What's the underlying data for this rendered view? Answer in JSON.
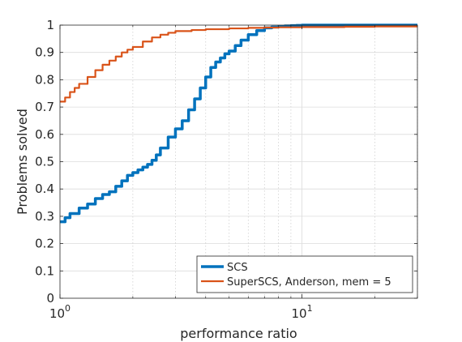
{
  "chart_data": {
    "type": "line",
    "title": "",
    "xlabel": "performance ratio",
    "ylabel": "Problems solved",
    "xscale": "log",
    "xlim": [
      1,
      30
    ],
    "ylim": [
      0,
      1
    ],
    "grid": true,
    "legend_position": "bottom-right",
    "y_ticks": [
      0,
      0.1,
      0.2,
      0.3,
      0.4,
      0.5,
      0.6,
      0.7,
      0.8,
      0.9,
      1
    ],
    "y_tick_labels": [
      "0",
      "0.1",
      "0.2",
      "0.3",
      "0.4",
      "0.5",
      "0.6",
      "0.7",
      "0.8",
      "0.9",
      "1"
    ],
    "x_major_ticks": [
      {
        "value": 1,
        "base": "10",
        "exp": "0"
      },
      {
        "value": 10,
        "base": "10",
        "exp": "1"
      }
    ],
    "x_minor_ticks": [
      2,
      3,
      4,
      5,
      6,
      7,
      8,
      9,
      20,
      30
    ],
    "series": [
      {
        "name": "SCS",
        "color": "#0072BD",
        "x": [
          1.0,
          1.05,
          1.1,
          1.2,
          1.3,
          1.4,
          1.5,
          1.6,
          1.7,
          1.8,
          1.9,
          2.0,
          2.1,
          2.2,
          2.3,
          2.4,
          2.5,
          2.6,
          2.8,
          3.0,
          3.2,
          3.4,
          3.6,
          3.8,
          4.0,
          4.2,
          4.4,
          4.6,
          4.8,
          5.0,
          5.3,
          5.6,
          6.0,
          6.5,
          7.0,
          7.5,
          8.0,
          8.5,
          9.0,
          9.5,
          10.0,
          12.0,
          15.0,
          20.0,
          30.0
        ],
        "y": [
          0.28,
          0.295,
          0.31,
          0.33,
          0.345,
          0.365,
          0.38,
          0.39,
          0.41,
          0.43,
          0.45,
          0.46,
          0.47,
          0.48,
          0.49,
          0.505,
          0.525,
          0.55,
          0.59,
          0.62,
          0.65,
          0.69,
          0.73,
          0.77,
          0.81,
          0.845,
          0.865,
          0.88,
          0.895,
          0.905,
          0.925,
          0.945,
          0.965,
          0.98,
          0.99,
          0.993,
          0.995,
          0.997,
          0.998,
          0.999,
          1.0,
          1.0,
          1.0,
          1.0,
          1.0
        ]
      },
      {
        "name": "SuperSCS, Anderson, mem = 5",
        "color": "#D95319",
        "x": [
          1.0,
          1.05,
          1.1,
          1.15,
          1.2,
          1.3,
          1.4,
          1.5,
          1.6,
          1.7,
          1.8,
          1.9,
          2.0,
          2.2,
          2.4,
          2.6,
          2.8,
          3.0,
          3.5,
          4.0,
          5.0,
          6.0,
          7.0,
          8.0,
          10.0,
          15.0,
          20.0,
          30.0
        ],
        "y": [
          0.72,
          0.735,
          0.755,
          0.77,
          0.785,
          0.81,
          0.835,
          0.855,
          0.87,
          0.885,
          0.9,
          0.91,
          0.92,
          0.94,
          0.955,
          0.965,
          0.972,
          0.978,
          0.982,
          0.985,
          0.988,
          0.99,
          0.991,
          0.992,
          0.993,
          0.994,
          0.995,
          0.995
        ]
      }
    ]
  }
}
